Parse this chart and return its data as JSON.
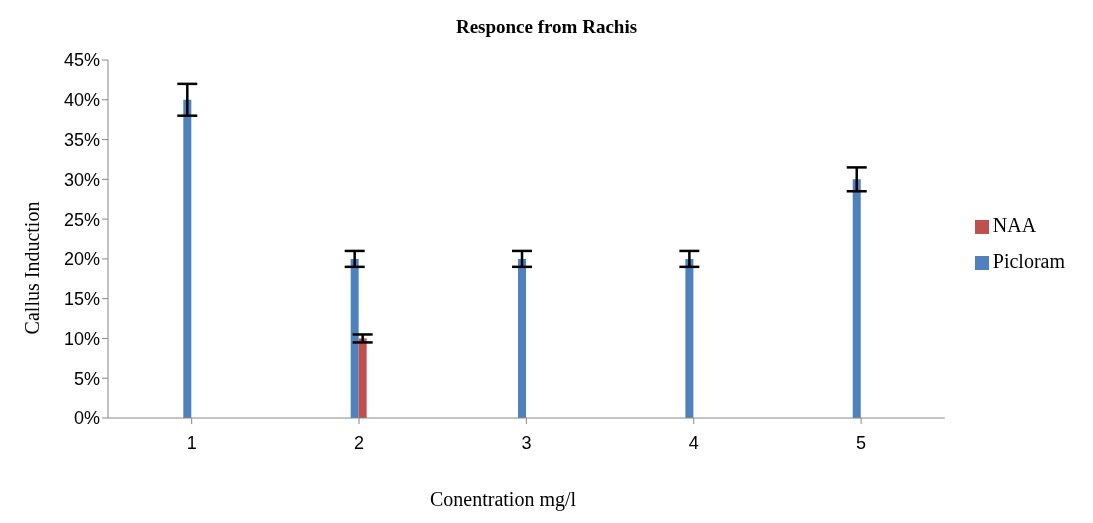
{
  "chart_data": {
    "type": "bar",
    "title": "Responce from Rachis",
    "xlabel": "Conentration mg/l",
    "ylabel": "Callus Induction",
    "categories": [
      "1",
      "2",
      "3",
      "4",
      "5"
    ],
    "series": [
      {
        "name": "Picloram",
        "color": "#4f81bd",
        "values": [
          40,
          20,
          20,
          20,
          30
        ],
        "errors": [
          2,
          1,
          1,
          1,
          1.5
        ]
      },
      {
        "name": "NAA",
        "color": "#c0504d",
        "values": [
          null,
          10,
          null,
          null,
          null
        ],
        "errors": [
          null,
          0.5,
          null,
          null,
          null
        ]
      }
    ],
    "ylim": [
      0,
      45
    ],
    "yticks": [
      {
        "value": 0,
        "label": "0%"
      },
      {
        "value": 5,
        "label": "5%"
      },
      {
        "value": 10,
        "label": "10%"
      },
      {
        "value": 15,
        "label": "15%"
      },
      {
        "value": 20,
        "label": "20%"
      },
      {
        "value": 25,
        "label": "25%"
      },
      {
        "value": 30,
        "label": "30%"
      },
      {
        "value": 35,
        "label": "35%"
      },
      {
        "value": 40,
        "label": "40%"
      },
      {
        "value": 45,
        "label": "45%"
      }
    ],
    "grid": false,
    "legend": "right"
  }
}
